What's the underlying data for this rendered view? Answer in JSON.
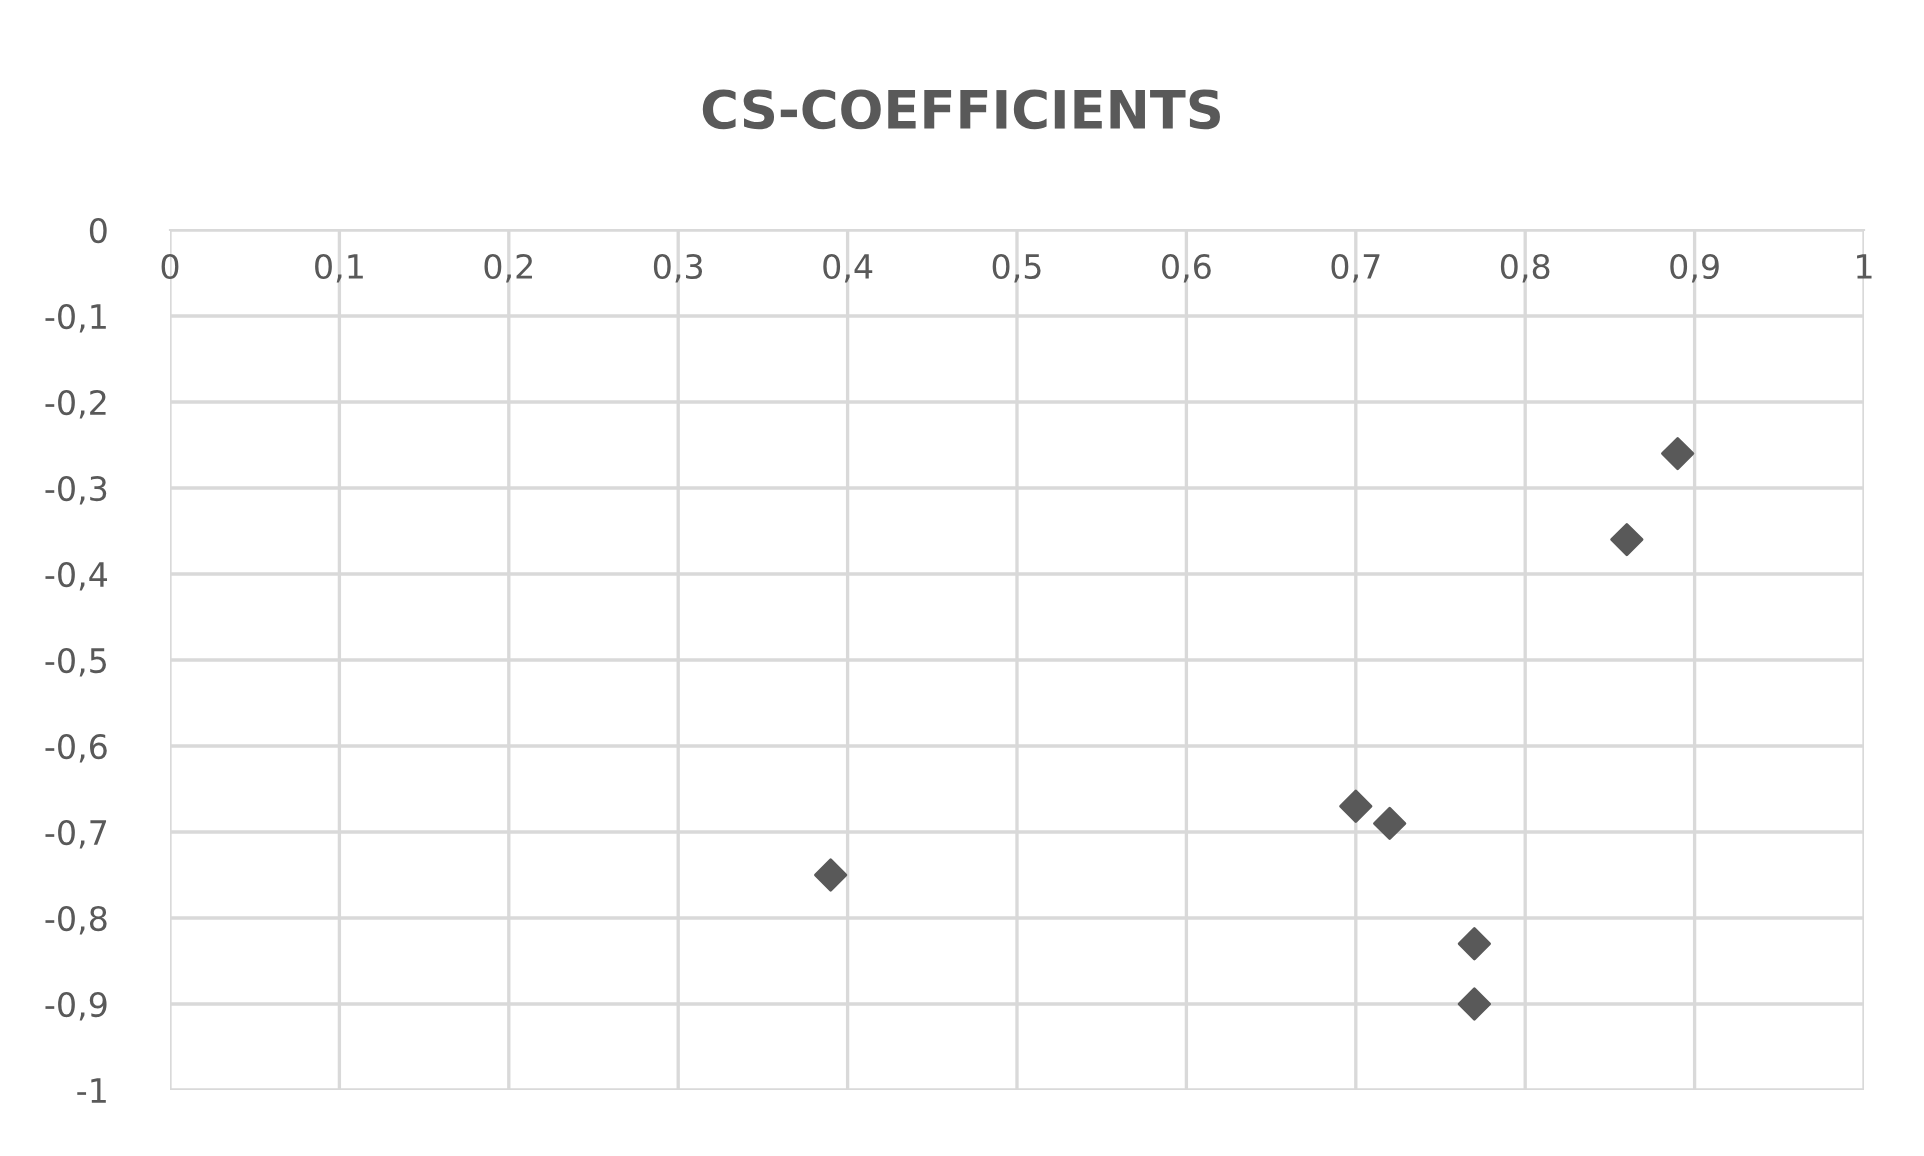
{
  "chart_data": {
    "type": "scatter",
    "title": "CS-COEFFICIENTS",
    "x": [
      0.39,
      0.7,
      0.72,
      0.77,
      0.77,
      0.86,
      0.89
    ],
    "values": [
      -0.75,
      -0.67,
      -0.69,
      -0.83,
      -0.9,
      -0.36,
      -0.26
    ],
    "color": "#595959",
    "marker": "diamond",
    "grid": true,
    "xlim": [
      0,
      1
    ],
    "xticks": [
      0,
      {
        "value": 0.1,
        "label": "0,1"
      },
      {
        "value": 0.2,
        "label": "0,2"
      },
      {
        "value": 0.3,
        "label": "0,3"
      },
      {
        "value": 0.4,
        "label": "0,4"
      },
      {
        "value": 0.5,
        "label": "0,5"
      },
      {
        "value": 0.6,
        "label": "0,6"
      },
      {
        "value": 0.7,
        "label": "0,7"
      },
      {
        "value": 0.8,
        "label": "0,8"
      },
      {
        "value": 0.9,
        "label": "0,9"
      },
      1
    ],
    "ylim": [
      -1,
      0
    ],
    "yticks": [
      0,
      {
        "value": -0.1,
        "label": "-0,1"
      },
      {
        "value": -0.2,
        "label": "-0,2"
      },
      {
        "value": -0.3,
        "label": "-0,3"
      },
      {
        "value": -0.4,
        "label": "-0,4"
      },
      {
        "value": -0.5,
        "label": "-0,5"
      },
      {
        "value": -0.6,
        "label": "-0,6"
      },
      {
        "value": -0.7,
        "label": "-0,7"
      },
      {
        "value": -0.8,
        "label": "-0,8"
      },
      {
        "value": -0.9,
        "label": "-0,9"
      },
      -1
    ]
  }
}
